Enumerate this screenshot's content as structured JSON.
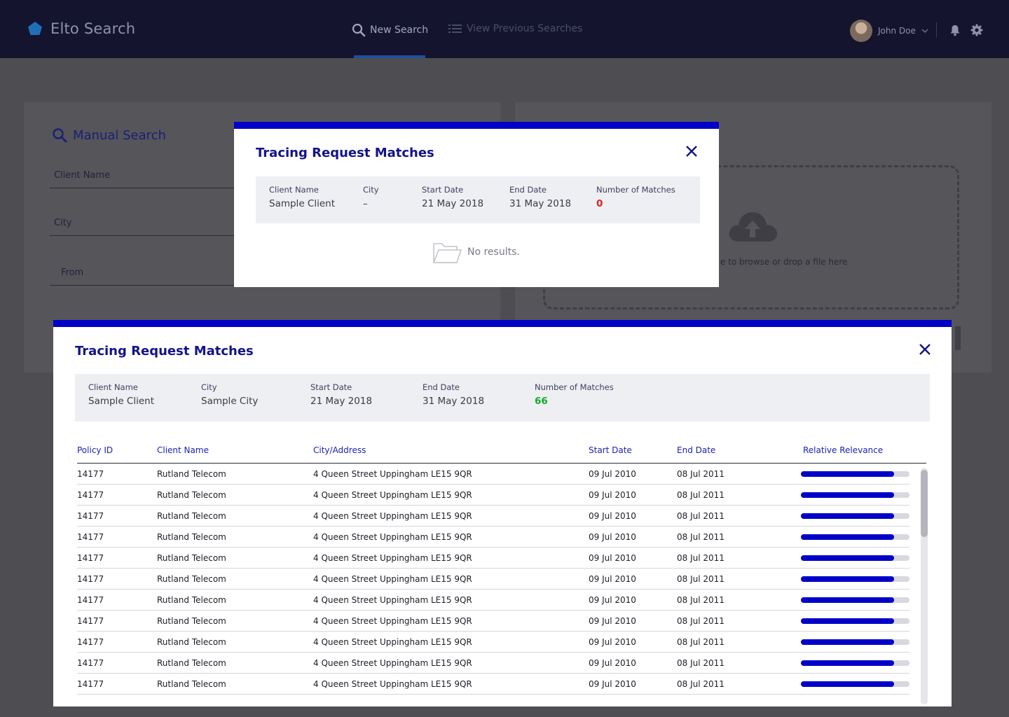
{
  "nav": {
    "brand": "Elto Search",
    "tabs": [
      {
        "label": "New Search",
        "active": true
      },
      {
        "label": "View Previous Searches",
        "active": false
      }
    ],
    "user_name": "John Doe",
    "accent": "#1f4f9c"
  },
  "manual_search": {
    "title": "Manual Search",
    "fields": {
      "client_name": "Client Name",
      "city": "City",
      "from": "From"
    }
  },
  "upload": {
    "hint": "e to browse or drop a file here"
  },
  "modal_small": {
    "title": "Tracing Request Matches",
    "summary": {
      "client_name_label": "Client Name",
      "client_name": "Sample Client",
      "city_label": "City",
      "city": "–",
      "start_label": "Start Date",
      "start": "21 May 2018",
      "end_label": "End Date",
      "end": "31 May 2018",
      "matches_label": "Number of Matches",
      "matches": "0"
    },
    "empty_text": "No results."
  },
  "modal_large": {
    "title": "Tracing Request Matches",
    "summary": {
      "client_name_label": "Client Name",
      "client_name": "Sample Client",
      "city_label": "City",
      "city": "Sample City",
      "start_label": "Start Date",
      "start": "21 May 2018",
      "end_label": "End Date",
      "end": "31 May 2018",
      "matches_label": "Number of Matches",
      "matches": "66"
    },
    "columns": [
      "Policy ID",
      "Client Name",
      "City/Address",
      "Start Date",
      "End Date",
      "Relative Relevance"
    ],
    "rows": [
      {
        "policy_id": "14177",
        "client": "Rutland Telecom",
        "address": "4 Queen Street Uppingham LE15 9QR",
        "start": "09 Jul 2010",
        "end": "08 Jul 2011",
        "relevance": 0.86
      },
      {
        "policy_id": "14177",
        "client": "Rutland Telecom",
        "address": "4 Queen Street Uppingham LE15 9QR",
        "start": "09 Jul 2010",
        "end": "08 Jul 2011",
        "relevance": 0.86
      },
      {
        "policy_id": "14177",
        "client": "Rutland Telecom",
        "address": "4 Queen Street Uppingham LE15 9QR",
        "start": "09 Jul 2010",
        "end": "08 Jul 2011",
        "relevance": 0.86
      },
      {
        "policy_id": "14177",
        "client": "Rutland Telecom",
        "address": "4 Queen Street Uppingham LE15 9QR",
        "start": "09 Jul 2010",
        "end": "08 Jul 2011",
        "relevance": 0.86
      },
      {
        "policy_id": "14177",
        "client": "Rutland Telecom",
        "address": "4 Queen Street Uppingham LE15 9QR",
        "start": "09 Jul 2010",
        "end": "08 Jul 2011",
        "relevance": 0.86
      },
      {
        "policy_id": "14177",
        "client": "Rutland Telecom",
        "address": "4 Queen Street Uppingham LE15 9QR",
        "start": "09 Jul 2010",
        "end": "08 Jul 2011",
        "relevance": 0.86
      },
      {
        "policy_id": "14177",
        "client": "Rutland Telecom",
        "address": "4 Queen Street Uppingham LE15 9QR",
        "start": "09 Jul 2010",
        "end": "08 Jul 2011",
        "relevance": 0.86
      },
      {
        "policy_id": "14177",
        "client": "Rutland Telecom",
        "address": "4 Queen Street Uppingham LE15 9QR",
        "start": "09 Jul 2010",
        "end": "08 Jul 2011",
        "relevance": 0.86
      },
      {
        "policy_id": "14177",
        "client": "Rutland Telecom",
        "address": "4 Queen Street Uppingham LE15 9QR",
        "start": "09 Jul 2010",
        "end": "08 Jul 2011",
        "relevance": 0.86
      },
      {
        "policy_id": "14177",
        "client": "Rutland Telecom",
        "address": "4 Queen Street Uppingham LE15 9QR",
        "start": "09 Jul 2010",
        "end": "08 Jul 2011",
        "relevance": 0.86
      },
      {
        "policy_id": "14177",
        "client": "Rutland Telecom",
        "address": "4 Queen Street Uppingham LE15 9QR",
        "start": "09 Jul 2010",
        "end": "08 Jul 2011",
        "relevance": 0.86
      }
    ]
  },
  "colors": {
    "modal_accent": "#0000c8",
    "zero_matches": "#e02020",
    "positive_matches": "#16a82a"
  }
}
